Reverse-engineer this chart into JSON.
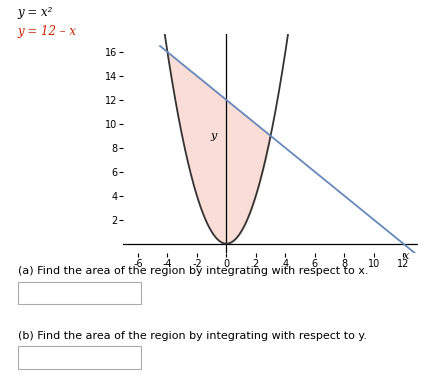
{
  "title_eq1": "y = x²",
  "title_eq2": "y = 12 – x",
  "xlim": [
    -7,
    13
  ],
  "ylim": [
    -0.8,
    17.5
  ],
  "xticks": [
    -6,
    -4,
    -2,
    0,
    2,
    4,
    6,
    8,
    10,
    12
  ],
  "yticks": [
    2,
    4,
    6,
    8,
    10,
    12,
    14,
    16
  ],
  "xlabel": "x",
  "ylabel": "y",
  "fill_color": "#f7cfc5",
  "fill_alpha": 0.7,
  "parabola_color": "#333333",
  "line_color": "#6688bb",
  "intersection_x1": -4,
  "intersection_x2": 3,
  "question_a": "(a) Find the area of the region by integrating with respect to x.",
  "question_b": "(b) Find the area of the region by integrating with respect to y.",
  "eq1_color": "#000000",
  "eq2_color": "#cc2200",
  "fig_width": 4.4,
  "fig_height": 3.78,
  "dpi": 100
}
